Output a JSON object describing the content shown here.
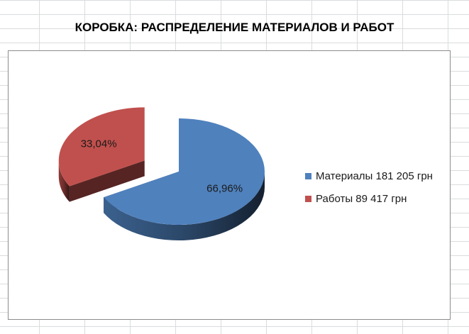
{
  "chart_data": {
    "type": "pie",
    "title": "КОРОБКА: РАСПРЕДЕЛЕНИЕ МАТЕРИАЛОВ И РАБОТ",
    "slices": [
      {
        "legend": "Материалы 181 205 грн",
        "value": 181205,
        "percent_label": "66,96%",
        "color": "#4f81bd",
        "exploded": false
      },
      {
        "legend": "Работы 89 417 грн",
        "value": 89417,
        "percent_label": "33,04%",
        "color": "#c0504d",
        "exploded": true
      }
    ],
    "legend_position": "right",
    "style": "3d-exploded"
  }
}
